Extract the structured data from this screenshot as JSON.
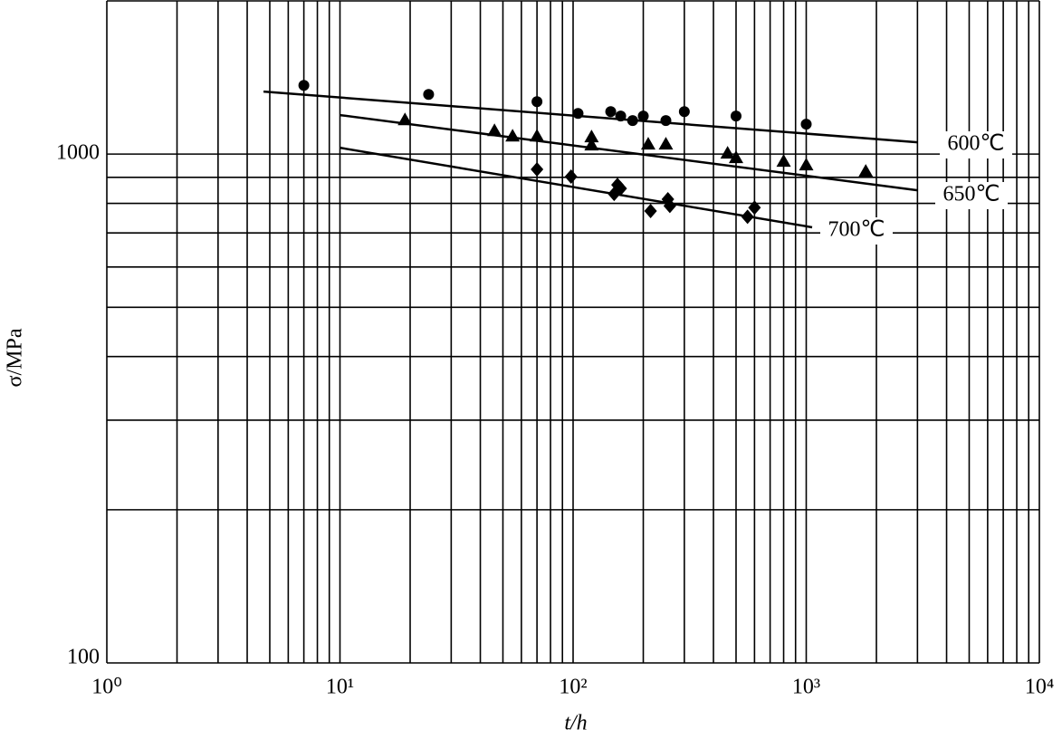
{
  "chart_data": {
    "type": "scatter",
    "x_label": "t/h",
    "y_label": "σ/MPa",
    "xlog": true,
    "ylog": true,
    "grid": true,
    "xlim": [
      1,
      10000
    ],
    "ylim": [
      100,
      2000
    ],
    "xticks": [
      {
        "value": 1,
        "label": "10⁰"
      },
      {
        "value": 10,
        "label": "10¹"
      },
      {
        "value": 100,
        "label": "10²"
      },
      {
        "value": 1000,
        "label": "10³"
      },
      {
        "value": 10000,
        "label": "10⁴"
      }
    ],
    "yticks": [
      100,
      1000
    ],
    "minor_xticks": [
      2,
      3,
      4,
      5,
      6,
      7,
      8,
      9,
      20,
      30,
      40,
      50,
      60,
      70,
      80,
      90,
      200,
      300,
      400,
      500,
      600,
      700,
      800,
      900,
      2000,
      3000,
      4000,
      5000,
      6000,
      7000,
      8000,
      9000
    ],
    "minor_yticks": [
      200,
      300,
      400,
      500,
      600,
      700,
      800,
      900
    ],
    "series": [
      {
        "name": "600℃",
        "marker": "circle",
        "color": "#000",
        "x": [
          7,
          24,
          70,
          105,
          145,
          160,
          180,
          200,
          250,
          300,
          500,
          1000
        ],
        "values": [
          1365,
          1310,
          1268,
          1202,
          1212,
          1188,
          1164,
          1188,
          1164,
          1212,
          1188,
          1145
        ],
        "fit": {
          "x": [
            4.7,
            3000
          ],
          "values": [
            1327,
            1055
          ]
        }
      },
      {
        "name": "650℃",
        "marker": "triangle",
        "color": "#000",
        "x": [
          19,
          46,
          55,
          70,
          120,
          120,
          210,
          250,
          460,
          500,
          800,
          1000,
          1800
        ],
        "values": [
          1168,
          1112,
          1085,
          1085,
          1081,
          1042,
          1046,
          1046,
          1004,
          984,
          968,
          952,
          925
        ],
        "fit": {
          "x": [
            10,
            3000
          ],
          "values": [
            1193,
            849
          ]
        }
      },
      {
        "name": "700℃",
        "marker": "diamond",
        "color": "#000",
        "x": [
          70,
          98,
          155,
          150,
          160,
          215,
          255,
          260,
          560,
          600
        ],
        "values": [
          933,
          903,
          870,
          835,
          856,
          773,
          815,
          791,
          753,
          785
        ],
        "fit": {
          "x": [
            10,
            1060
          ],
          "values": [
            1029,
            718
          ]
        }
      }
    ]
  }
}
